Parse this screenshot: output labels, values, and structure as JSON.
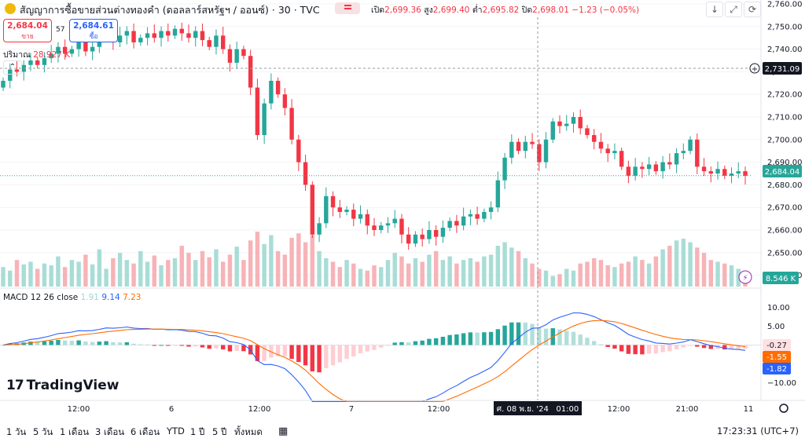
{
  "header": {
    "title": "สัญญาการซื้อขายส่วนต่างทองคำ (ดอลลาร์สหรัฐฯ / ออนซ์) · 30 · TVC",
    "ohlc": {
      "open_label": "เปิด",
      "open": "2,699.36",
      "high_label": "สูง",
      "high": "2,699.40",
      "low_label": "ต่ำ",
      "low": "2,695.82",
      "close_label": "ปิด",
      "close": "2,698.01",
      "change": "−1.23 (−0.05%)"
    }
  },
  "trade": {
    "sell_price": "2,684.04",
    "sell_label": "ขาย",
    "spread": "57",
    "buy_price": "2,684.61",
    "buy_label": "ซื้อ"
  },
  "volume_legend": {
    "label": "ปริมาณ",
    "value": "28.927 K"
  },
  "macd_legend": {
    "label": "MACD 12 26 close",
    "hist": "1.91",
    "macd": "9.14",
    "signal": "7.23"
  },
  "price_badges": {
    "crosshair": "2,731.09",
    "last": "2,684.04",
    "volume": "8.546 K"
  },
  "macd_badges": {
    "a": "-0.27",
    "b": "-1.55",
    "c": "-1.82"
  },
  "crosshair_time": "ศ. 08 พ.ย. '24   01:00",
  "brand": "TradingView",
  "bottom_bar": {
    "ranges": [
      "1 วัน",
      "5 วัน",
      "1 เดือน",
      "3 เดือน",
      "6 เดือน",
      "YTD",
      "1 ปี",
      "5 ปี",
      "ทั้งหมด"
    ],
    "clock": "17:23:31 (UTC+7)"
  },
  "colors": {
    "up": "#26a69a",
    "down": "#f23645",
    "macd": "#2962ff",
    "signal": "#ff6d00",
    "accent": "#2962ff"
  },
  "icons": [
    "gold-symbol-icon",
    "sort-down-icon",
    "fullscreen-icon",
    "reset-icon",
    "lightning-icon",
    "settings-gear-icon",
    "date-range-icon",
    "plus-circle-icon"
  ],
  "chart_data": [
    {
      "type": "candlestick",
      "ylim": [
        2635,
        2760
      ],
      "y_ticks": [
        2640,
        2650,
        2660,
        2670,
        2680,
        2690,
        2700,
        2710,
        2720,
        2730,
        2740,
        2750,
        2760
      ],
      "x_ticks": [
        "12:00",
        "6",
        "12:00",
        "7",
        "12:00",
        "12:00",
        "21:00",
        "11"
      ],
      "close": [
        2726,
        2731,
        2730,
        2733,
        2735,
        2733,
        2736,
        2738,
        2741,
        2738,
        2740,
        2743,
        2739,
        2741,
        2745,
        2747,
        2743,
        2746,
        2748,
        2743,
        2745,
        2747,
        2745,
        2748,
        2746,
        2749,
        2747,
        2745,
        2748,
        2744,
        2741,
        2746,
        2740,
        2734,
        2740,
        2737,
        2723,
        2702,
        2716,
        2726,
        2720,
        2714,
        2700,
        2690,
        2680,
        2658,
        2663,
        2675,
        2670,
        2668,
        2669,
        2665,
        2667,
        2662,
        2660,
        2662,
        2663,
        2665,
        2658,
        2654,
        2658,
        2656,
        2660,
        2657,
        2661,
        2664,
        2662,
        2666,
        2667,
        2665,
        2668,
        2670,
        2682,
        2692,
        2699,
        2695,
        2699,
        2698,
        2690,
        2700,
        2708,
        2706,
        2707,
        2710,
        2705,
        2702,
        2699,
        2696,
        2694,
        2695,
        2688,
        2684,
        2688,
        2687,
        2689,
        2686,
        2690,
        2689,
        2694,
        2695,
        2700,
        2688,
        2686,
        2685,
        2687,
        2684,
        2685,
        2686,
        2684
      ],
      "volume": [
        22,
        18,
        30,
        25,
        28,
        20,
        26,
        24,
        34,
        22,
        30,
        28,
        36,
        25,
        42,
        20,
        32,
        38,
        30,
        26,
        40,
        28,
        35,
        24,
        30,
        32,
        46,
        38,
        30,
        40,
        33,
        42,
        28,
        36,
        45,
        30,
        52,
        62,
        48,
        58,
        40,
        36,
        55,
        60,
        50,
        58,
        40,
        32,
        28,
        22,
        30,
        26,
        20,
        18,
        24,
        22,
        30,
        38,
        34,
        26,
        32,
        28,
        36,
        40,
        30,
        34,
        26,
        30,
        32,
        28,
        34,
        36,
        46,
        50,
        44,
        40,
        32,
        26,
        20,
        18,
        12,
        14,
        20,
        18,
        26,
        28,
        32,
        30,
        24,
        22,
        26,
        28,
        34,
        30,
        26,
        34,
        42,
        46,
        52,
        54,
        50,
        44,
        38,
        30,
        28,
        26,
        24,
        20,
        18
      ],
      "last_price": 2684.04
    },
    {
      "type": "macd",
      "ylim": [
        -12,
        12
      ],
      "y_ticks": [
        10,
        5,
        0,
        -5,
        -10
      ]
    }
  ]
}
